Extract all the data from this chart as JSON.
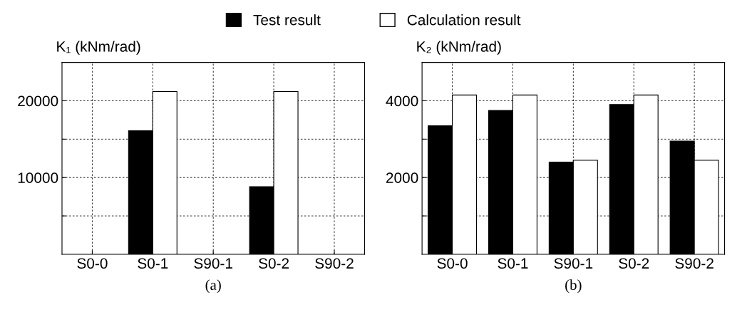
{
  "chart_data": [
    {
      "type": "bar",
      "ylabel": "K₁ (kNm/rad)",
      "xlabel": "(a)",
      "categories": [
        "S0-0",
        "S0-1",
        "S90-1",
        "S0-2",
        "S90-2"
      ],
      "series": [
        {
          "name": "Test result",
          "color": "#000000",
          "values": [
            null,
            16100,
            null,
            8800,
            null
          ]
        },
        {
          "name": "Calculation result",
          "color": "#ffffff",
          "values": [
            null,
            21200,
            null,
            21200,
            null
          ]
        }
      ],
      "ylim": [
        0,
        25000
      ],
      "yticks": [
        {
          "value": 5000,
          "label": null
        },
        10000,
        {
          "value": 15000,
          "label": null
        },
        20000
      ],
      "grid": true,
      "legend": "top"
    },
    {
      "type": "bar",
      "ylabel": "K₂ (kNm/rad)",
      "xlabel": "(b)",
      "categories": [
        "S0-0",
        "S0-1",
        "S90-1",
        "S0-2",
        "S90-2"
      ],
      "series": [
        {
          "name": "Test result",
          "color": "#000000",
          "values": [
            3350,
            3750,
            2400,
            3900,
            2950
          ]
        },
        {
          "name": "Calculation result",
          "color": "#ffffff",
          "values": [
            4150,
            4150,
            2450,
            4150,
            2450
          ]
        }
      ],
      "ylim": [
        0,
        5000
      ],
      "yticks": [
        {
          "value": 1000,
          "label": null
        },
        2000,
        {
          "value": 3000,
          "label": null
        },
        4000
      ],
      "grid": true
    }
  ]
}
